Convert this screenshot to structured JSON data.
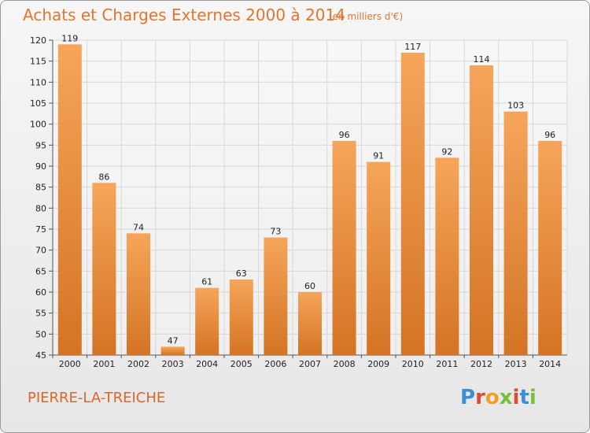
{
  "header": {
    "title": "Achats et Charges Externes 2000 à 2014",
    "subtitle": "(en milliers d'€)"
  },
  "footer": {
    "commune": "PIERRE-LA-TREICHE",
    "logo": "Proxiti",
    "logo_colors": [
      "#3a8fd6",
      "#e04a2f",
      "#f0a020",
      "#7abf3a",
      "#e04a2f",
      "#3a8fd6",
      "#7abf3a"
    ]
  },
  "colors": {
    "bar_light": "#f6a55a",
    "bar_dark": "#d47424",
    "title": "#e0762f",
    "grid": "#d8d8d8"
  },
  "chart_data": {
    "type": "bar",
    "title": "Achats et Charges Externes 2000 à 2014",
    "subtitle": "(en milliers d'€)",
    "categories": [
      "2000",
      "2001",
      "2002",
      "2003",
      "2004",
      "2005",
      "2006",
      "2007",
      "2008",
      "2009",
      "2010",
      "2011",
      "2012",
      "2013",
      "2014"
    ],
    "values": [
      119,
      86,
      74,
      47,
      61,
      63,
      73,
      60,
      96,
      91,
      117,
      92,
      114,
      103,
      96
    ],
    "ylim": [
      45,
      120
    ],
    "yticks": [
      45,
      50,
      55,
      60,
      65,
      70,
      75,
      80,
      85,
      90,
      95,
      100,
      105,
      110,
      115,
      120
    ],
    "grid": true,
    "data_labels": true
  }
}
